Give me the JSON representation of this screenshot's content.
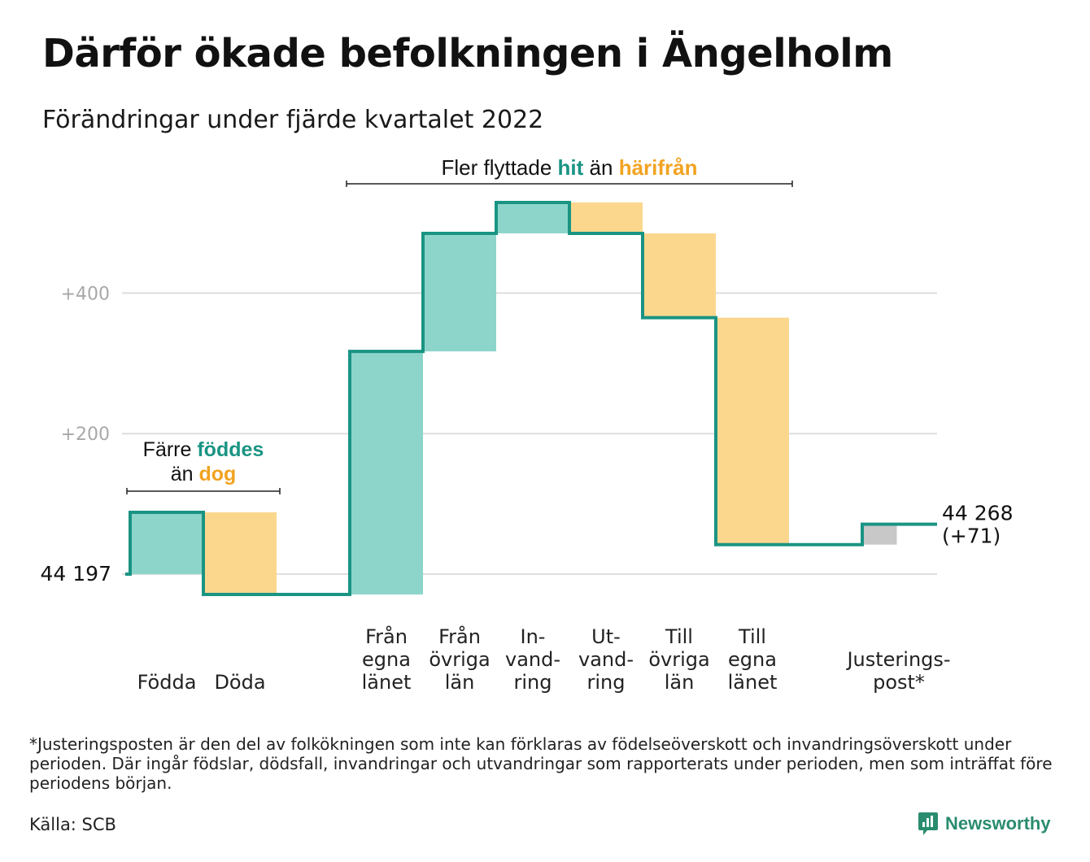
{
  "title": "Därför ökade befolkningen i Ängelholm",
  "subtitle": "Förändringar under fjärde kvartalet 2022",
  "chart_data": {
    "type": "waterfall",
    "start_value": 44197,
    "start_label": "44 197",
    "end_label_lines": [
      "44 268",
      "(+71)"
    ],
    "ylim": [
      -30,
      580
    ],
    "y_ticks": [
      {
        "value": 0,
        "label": ""
      },
      {
        "value": 200,
        "label": "+200"
      },
      {
        "value": 400,
        "label": "+400"
      }
    ],
    "steps": [
      {
        "label_lines": [
          "Födda"
        ],
        "value": 88,
        "kind": "increase"
      },
      {
        "label_lines": [
          "Döda"
        ],
        "value": -117,
        "kind": "decrease"
      },
      {
        "label_lines": [
          ""
        ],
        "value": 0,
        "kind": "gap"
      },
      {
        "label_lines": [
          "Från",
          "egna",
          "länet"
        ],
        "value": 346,
        "kind": "increase"
      },
      {
        "label_lines": [
          "Från",
          "övriga",
          "län"
        ],
        "value": 168,
        "kind": "increase"
      },
      {
        "label_lines": [
          "In-",
          "vand-",
          "ring"
        ],
        "value": 44,
        "kind": "increase"
      },
      {
        "label_lines": [
          "Ut-",
          "vand-",
          "ring"
        ],
        "value": -44,
        "kind": "decrease"
      },
      {
        "label_lines": [
          "Till",
          "övriga",
          "län"
        ],
        "value": -120,
        "kind": "decrease"
      },
      {
        "label_lines": [
          "Till",
          "egna",
          "länet"
        ],
        "value": -323,
        "kind": "decrease"
      },
      {
        "label_lines": [
          ""
        ],
        "value": 0,
        "kind": "gap"
      },
      {
        "label_lines": [
          "Justerings-",
          "post*"
        ],
        "value": 29,
        "kind": "adjustment"
      }
    ],
    "annotations": [
      {
        "lines": [
          [
            {
              "text": "Färre ",
              "kind": "plain"
            },
            {
              "text": "föddes",
              "kind": "increase"
            }
          ],
          [
            {
              "text": "än ",
              "kind": "plain"
            },
            {
              "text": "dog",
              "kind": "decrease"
            }
          ]
        ],
        "from_step": 0,
        "to_step": 1
      },
      {
        "lines": [
          [
            {
              "text": "Fler flyttade ",
              "kind": "plain"
            },
            {
              "text": "hit",
              "kind": "increase"
            },
            {
              "text": " än ",
              "kind": "plain"
            },
            {
              "text": "härifrån",
              "kind": "decrease"
            }
          ]
        ],
        "from_step": 3,
        "to_step": 8
      }
    ],
    "colors": {
      "increase": "#8dd5cb",
      "decrease": "#fbd78e",
      "adjustment": "#c8c8c8",
      "line": "#1a9483",
      "increase_text": "#1a9483",
      "decrease_text": "#f2a322",
      "grid": "#dedede",
      "tick_text": "#a8a8a8"
    }
  },
  "footnote": "*Justeringsposten är den del av folkökningen som inte kan förklaras av födelseöverskott och invandringsöverskott under perioden. Där ingår födslar, dödsfall, invandringar och utvandringar som rapporterats under perioden, men som inträffat före periodens början.",
  "source": "Källa: SCB",
  "logo": {
    "text": "Newsworthy",
    "icon": "newsworthy-chart-icon",
    "color": "#2a8c6f"
  }
}
